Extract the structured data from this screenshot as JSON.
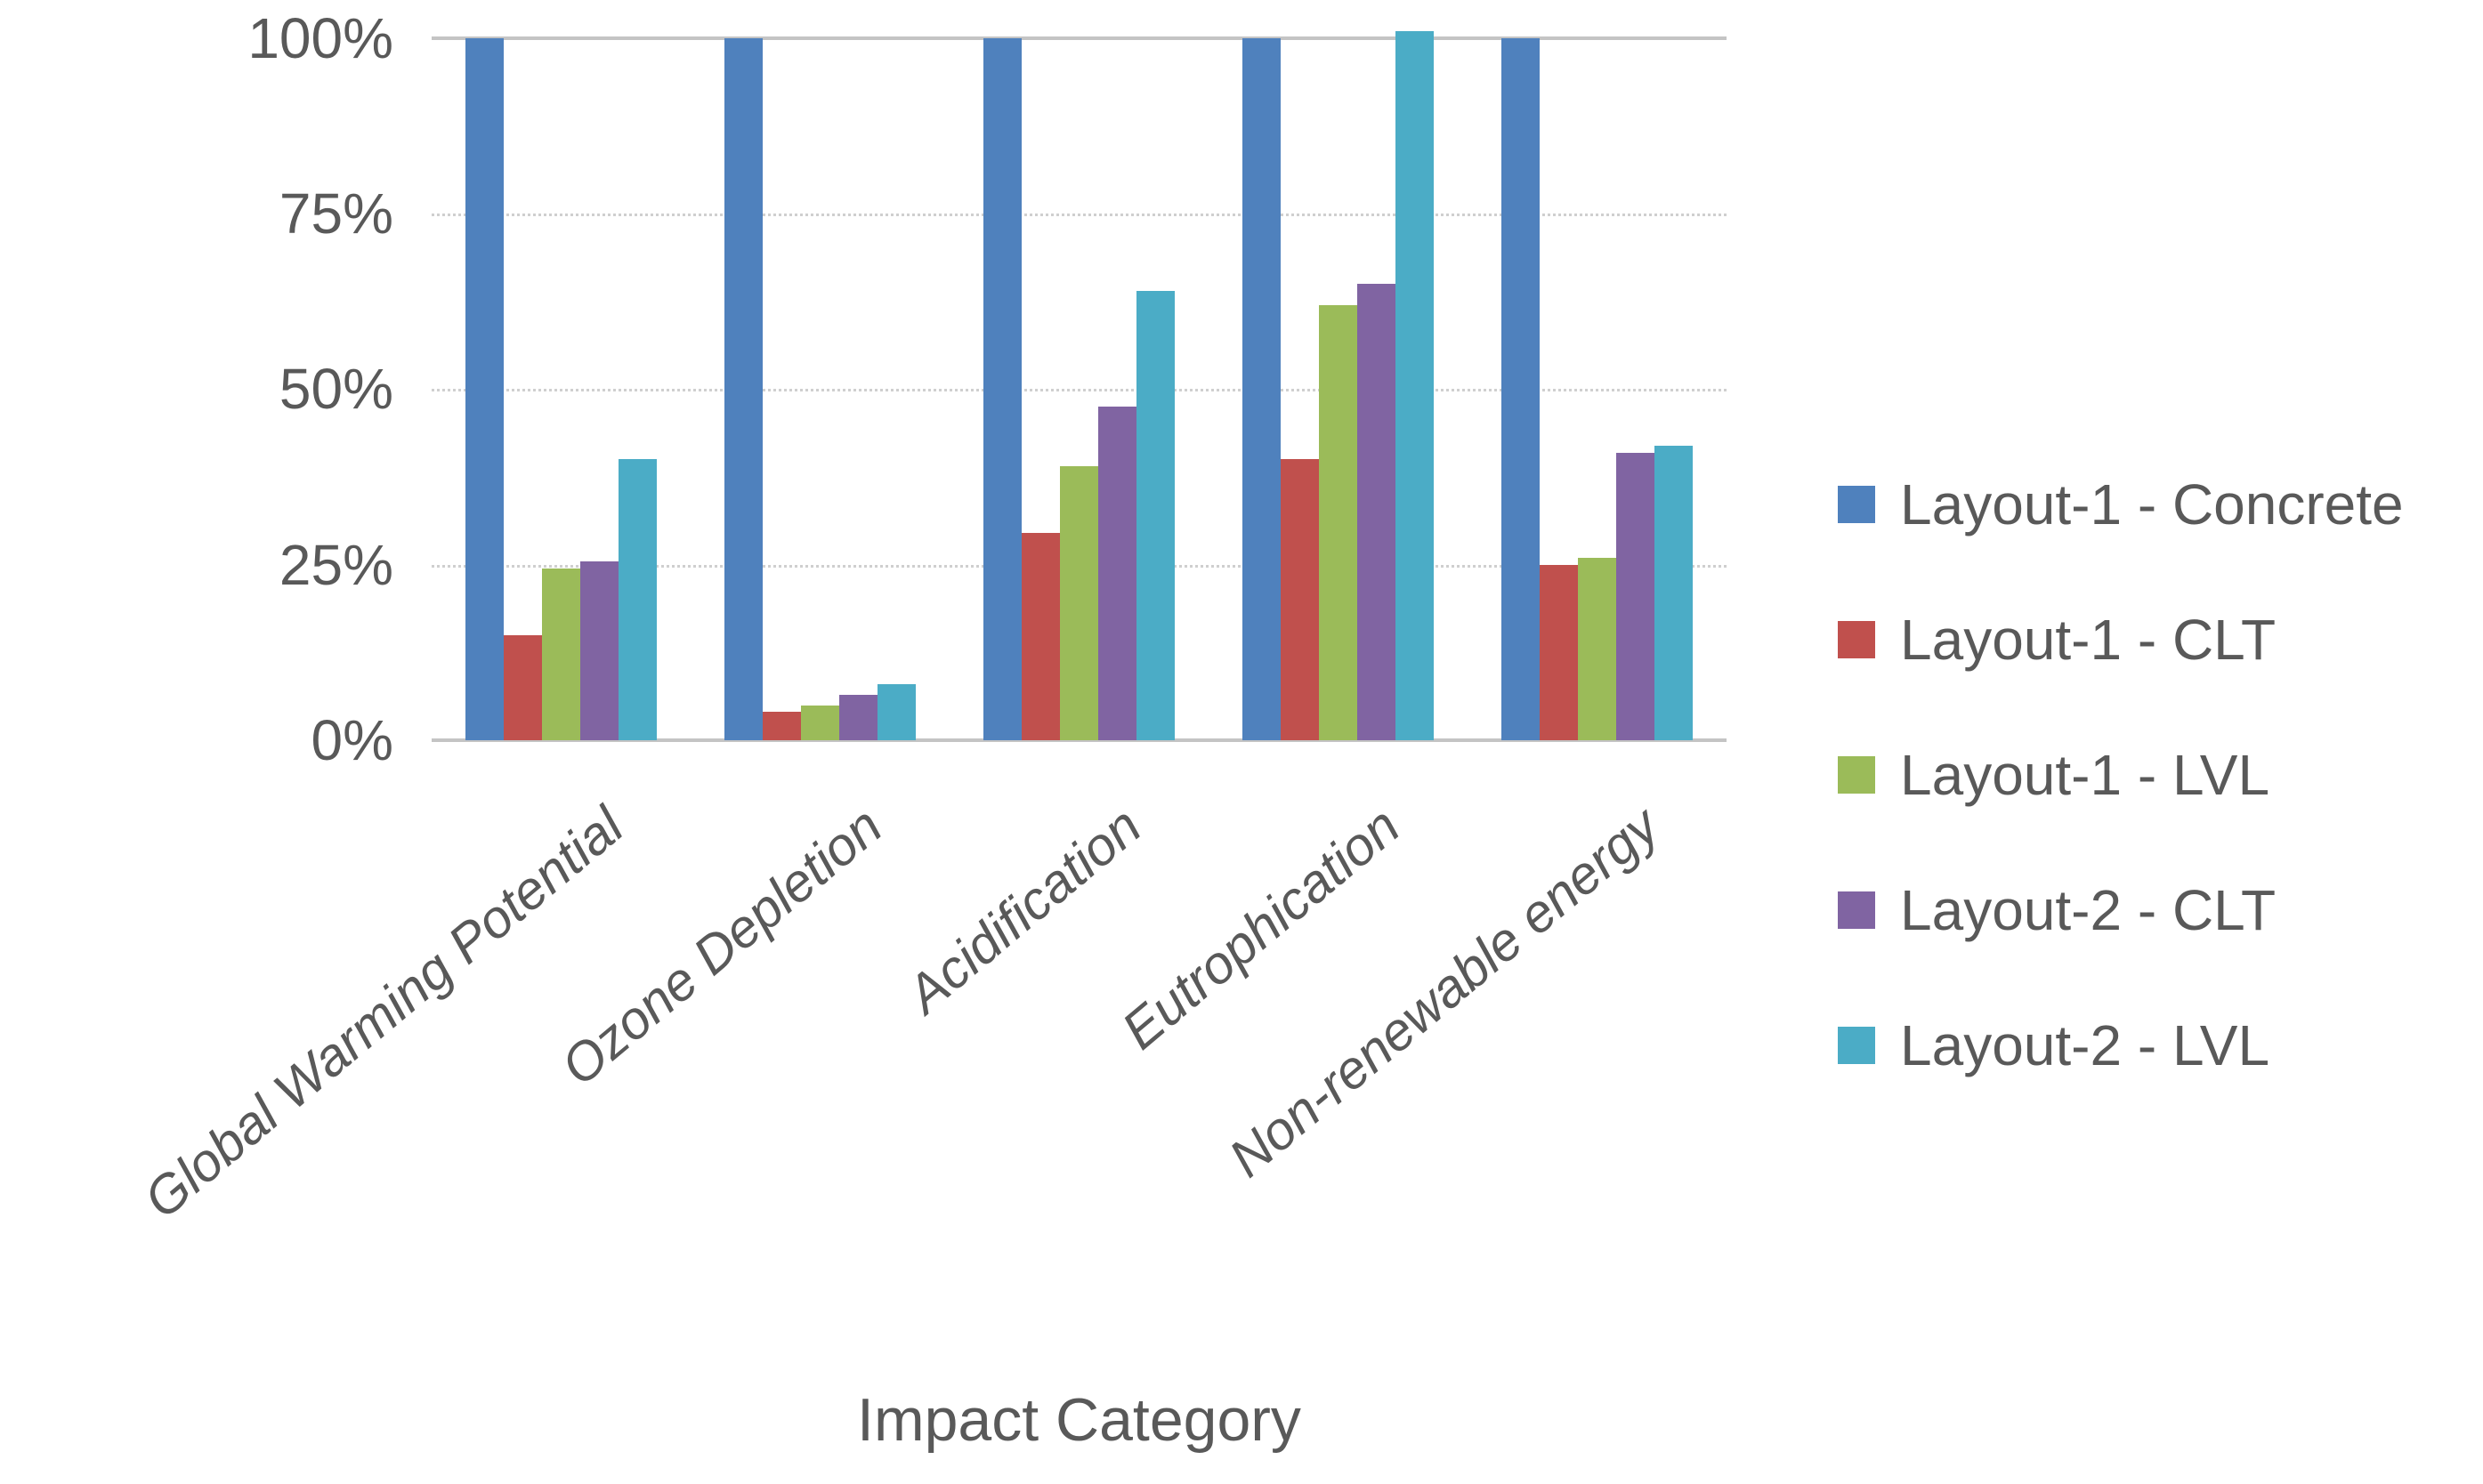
{
  "chart_data": {
    "type": "bar",
    "title": "",
    "xlabel": "Impact Category",
    "ylabel": "",
    "categories": [
      "Global Warming Potential",
      "Ozone Depletion",
      "Acidification",
      "Eutrophication",
      "Non-renewable energy"
    ],
    "series": [
      {
        "name": "Layout-1 - Concrete",
        "color": "#4F81BD",
        "values": [
          100,
          100,
          100,
          100,
          100
        ]
      },
      {
        "name": "Layout-1 - CLT",
        "color": "#C0504D",
        "values": [
          15,
          4,
          29.5,
          40,
          25
        ]
      },
      {
        "name": "Layout-1 - LVL",
        "color": "#9BBB59",
        "values": [
          24.5,
          5,
          39,
          62,
          26
        ]
      },
      {
        "name": "Layout-2 - CLT",
        "color": "#8064A2",
        "values": [
          25.5,
          6.5,
          47.5,
          65,
          41
        ]
      },
      {
        "name": "Layout-2 - LVL",
        "color": "#4BACC6",
        "values": [
          40,
          8,
          64,
          101,
          42
        ]
      }
    ],
    "y_ticks": [
      "100%",
      "75%",
      "50%",
      "25%",
      "0%"
    ],
    "ylim": [
      0,
      100
    ],
    "grid": true,
    "legend_position": "right",
    "text_color": "#595959",
    "gridline_color": "#c9c9c9"
  }
}
